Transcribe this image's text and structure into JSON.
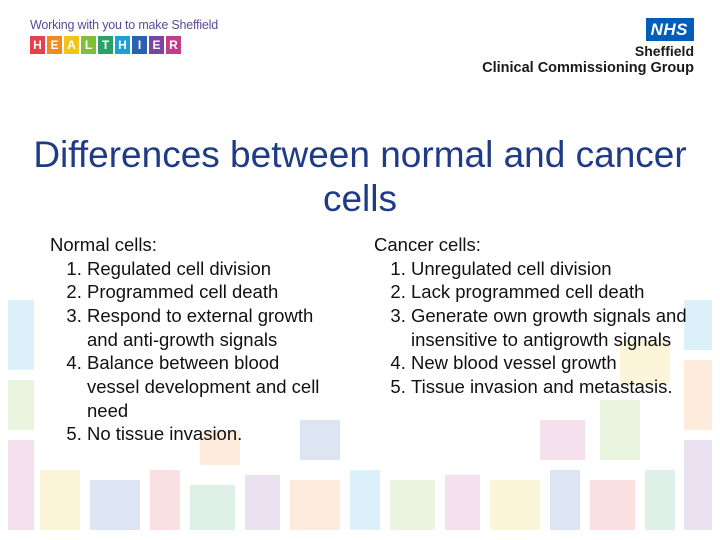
{
  "header": {
    "tagline": "Working with you to make Sheffield",
    "brand_letters": [
      "H",
      "E",
      "A",
      "L",
      "T",
      "H",
      "I",
      "E",
      "R"
    ],
    "brand_colors": [
      "#e8404a",
      "#f28b1e",
      "#f2c318",
      "#7fbf3a",
      "#2aa36b",
      "#1f9fd6",
      "#2b5fb0",
      "#7a45a5",
      "#c23c8c"
    ],
    "nhs_logo": "NHS",
    "nhs_org": "Sheffield",
    "nhs_group": "Clinical Commissioning Group",
    "nhs_color": "#005eb8"
  },
  "slide": {
    "title": "Differences between normal and cancer cells",
    "title_color": "#1f3b87"
  },
  "normal": {
    "heading": "Normal cells:",
    "items": [
      "Regulated cell division",
      "Programmed cell death",
      "Respond to external growth and anti-growth signals",
      "Balance between blood vessel development and cell need",
      "No tissue invasion."
    ]
  },
  "cancer": {
    "heading": "Cancer cells:",
    "items": [
      "Unregulated cell division",
      "Lack programmed cell death",
      "Generate own growth signals and insensitive to antigrowth signals",
      "New blood vessel growth",
      "Tissue invasion and metastasis."
    ]
  },
  "background_palette": [
    "#e8404a",
    "#f28b1e",
    "#f2c318",
    "#7fbf3a",
    "#2aa36b",
    "#1f9fd6",
    "#2b5fb0",
    "#7a45a5",
    "#c23c8c"
  ]
}
